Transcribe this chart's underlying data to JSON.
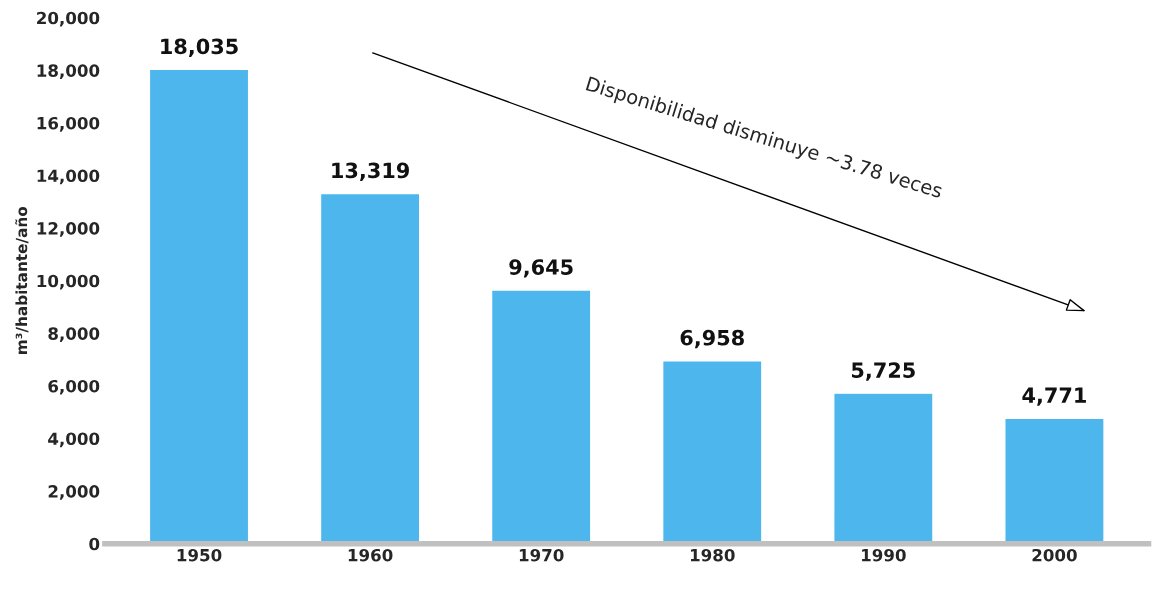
{
  "chart_data": {
    "type": "bar",
    "ylabel": "m³/habitante/año",
    "categories": [
      "1950",
      "1960",
      "1970",
      "1980",
      "1990",
      "2000"
    ],
    "values": [
      18035,
      13319,
      9645,
      6958,
      5725,
      4771
    ],
    "value_labels": [
      "18,035",
      "13,319",
      "9,645",
      "6,958",
      "5,725",
      "4,771"
    ],
    "color": "#4db6ec",
    "ylim": [
      0,
      20000
    ],
    "yticks": [
      0,
      {
        "value": 2000,
        "label": "2,000"
      },
      {
        "value": 4000,
        "label": "4,000"
      },
      {
        "value": 6000,
        "label": "6,000"
      },
      {
        "value": 8000,
        "label": "8,000"
      },
      {
        "value": 10000,
        "label": "10,000"
      },
      {
        "value": 12000,
        "label": "12,000"
      },
      {
        "value": 14000,
        "label": "14,000"
      },
      {
        "value": 16000,
        "label": "16,000"
      },
      {
        "value": 18000,
        "label": "18,000"
      },
      {
        "value": 20000,
        "label": "20,000"
      }
    ],
    "annotations": [
      "Disponibilidad disminuye ~3.78 veces"
    ],
    "grid": false
  }
}
